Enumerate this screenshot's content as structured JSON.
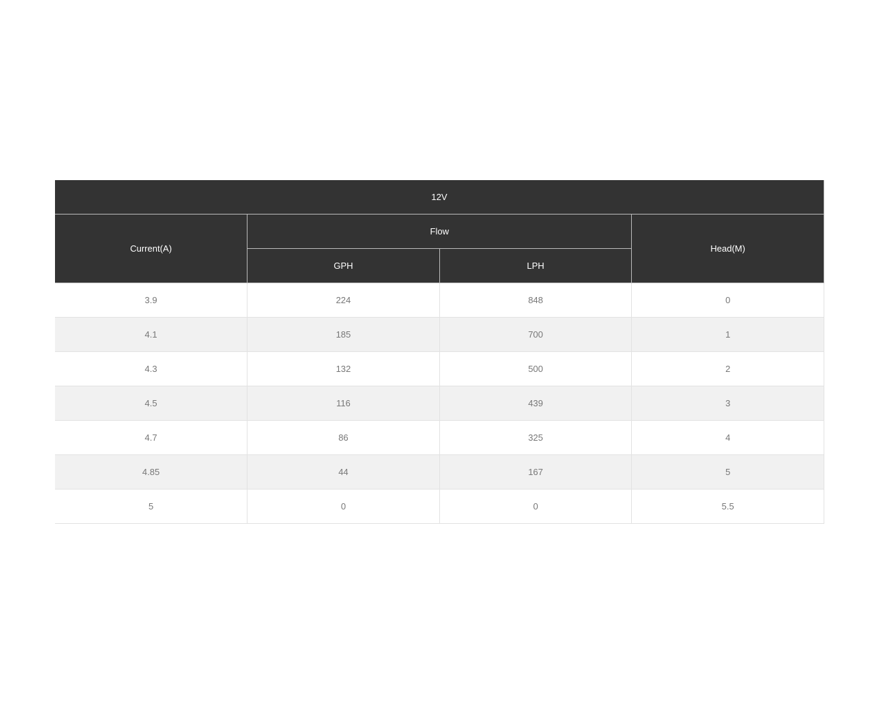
{
  "table": {
    "title": "12V",
    "headers": {
      "current": "Current(A)",
      "flow": "Flow",
      "gph": "GPH",
      "lph": "LPH",
      "head": "Head(M)"
    },
    "rows": [
      [
        "3.9",
        "224",
        "848",
        "0"
      ],
      [
        "4.1",
        "185",
        "700",
        "1"
      ],
      [
        "4.3",
        "132",
        "500",
        "2"
      ],
      [
        "4.5",
        "116",
        "439",
        "3"
      ],
      [
        "4.7",
        "86",
        "325",
        "4"
      ],
      [
        "4.85",
        "44",
        "167",
        "5"
      ],
      [
        "5",
        "0",
        "0",
        "5.5"
      ]
    ]
  }
}
